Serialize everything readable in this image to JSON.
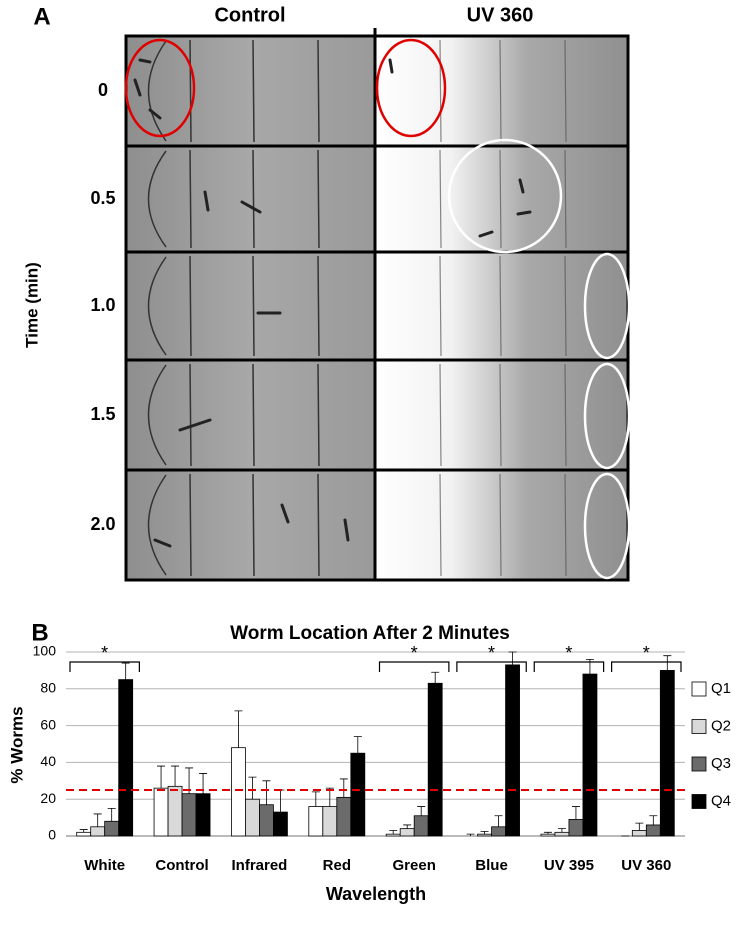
{
  "panel_a": {
    "label": "A",
    "columns": [
      "Control",
      "UV 360"
    ],
    "rows": [
      "0",
      "0.5",
      "1.0",
      "1.5",
      "2.0"
    ],
    "ylabel": "Time (min)"
  },
  "chart_data": {
    "type": "bar",
    "panel_label": "B",
    "title": "Worm Location After 2 Minutes",
    "xlabel": "Wavelength",
    "ylabel": "% Worms",
    "categories": [
      "White",
      "Control",
      "Infrared",
      "Red",
      "Green",
      "Blue",
      "UV 395",
      "UV 360"
    ],
    "series": [
      {
        "name": "Q1",
        "color": "#ffffff",
        "values": [
          2,
          26,
          48,
          16,
          1,
          0,
          1,
          0
        ],
        "errors": [
          1.5,
          12,
          20,
          8,
          2,
          1,
          1,
          0
        ]
      },
      {
        "name": "Q2",
        "color": "#d9d9d9",
        "values": [
          5,
          27,
          20,
          16,
          4,
          1,
          2,
          3
        ],
        "errors": [
          7,
          11,
          12,
          10,
          2,
          1.5,
          2,
          4
        ]
      },
      {
        "name": "Q3",
        "color": "#6b6b6b",
        "values": [
          8,
          23,
          17,
          21,
          11,
          5,
          9,
          6
        ],
        "errors": [
          7,
          14,
          13,
          10,
          5,
          6,
          7,
          5
        ]
      },
      {
        "name": "Q4",
        "color": "#000000",
        "values": [
          85,
          23,
          13,
          45,
          83,
          93,
          88,
          90
        ],
        "errors": [
          9,
          11,
          12,
          9,
          6,
          7,
          8,
          8
        ]
      }
    ],
    "ylim": [
      0,
      100
    ],
    "yticks": [
      0,
      20,
      40,
      60,
      80,
      100
    ],
    "grid": true,
    "legend": "right",
    "reference_line": {
      "value": 25,
      "color": "#e00000"
    },
    "annotations": [
      {
        "text": "*",
        "category": 0
      },
      {
        "text": "*",
        "category": 4
      },
      {
        "text": "*",
        "category": 5
      },
      {
        "text": "*",
        "category": 6
      },
      {
        "text": "*",
        "category": 7
      }
    ]
  }
}
